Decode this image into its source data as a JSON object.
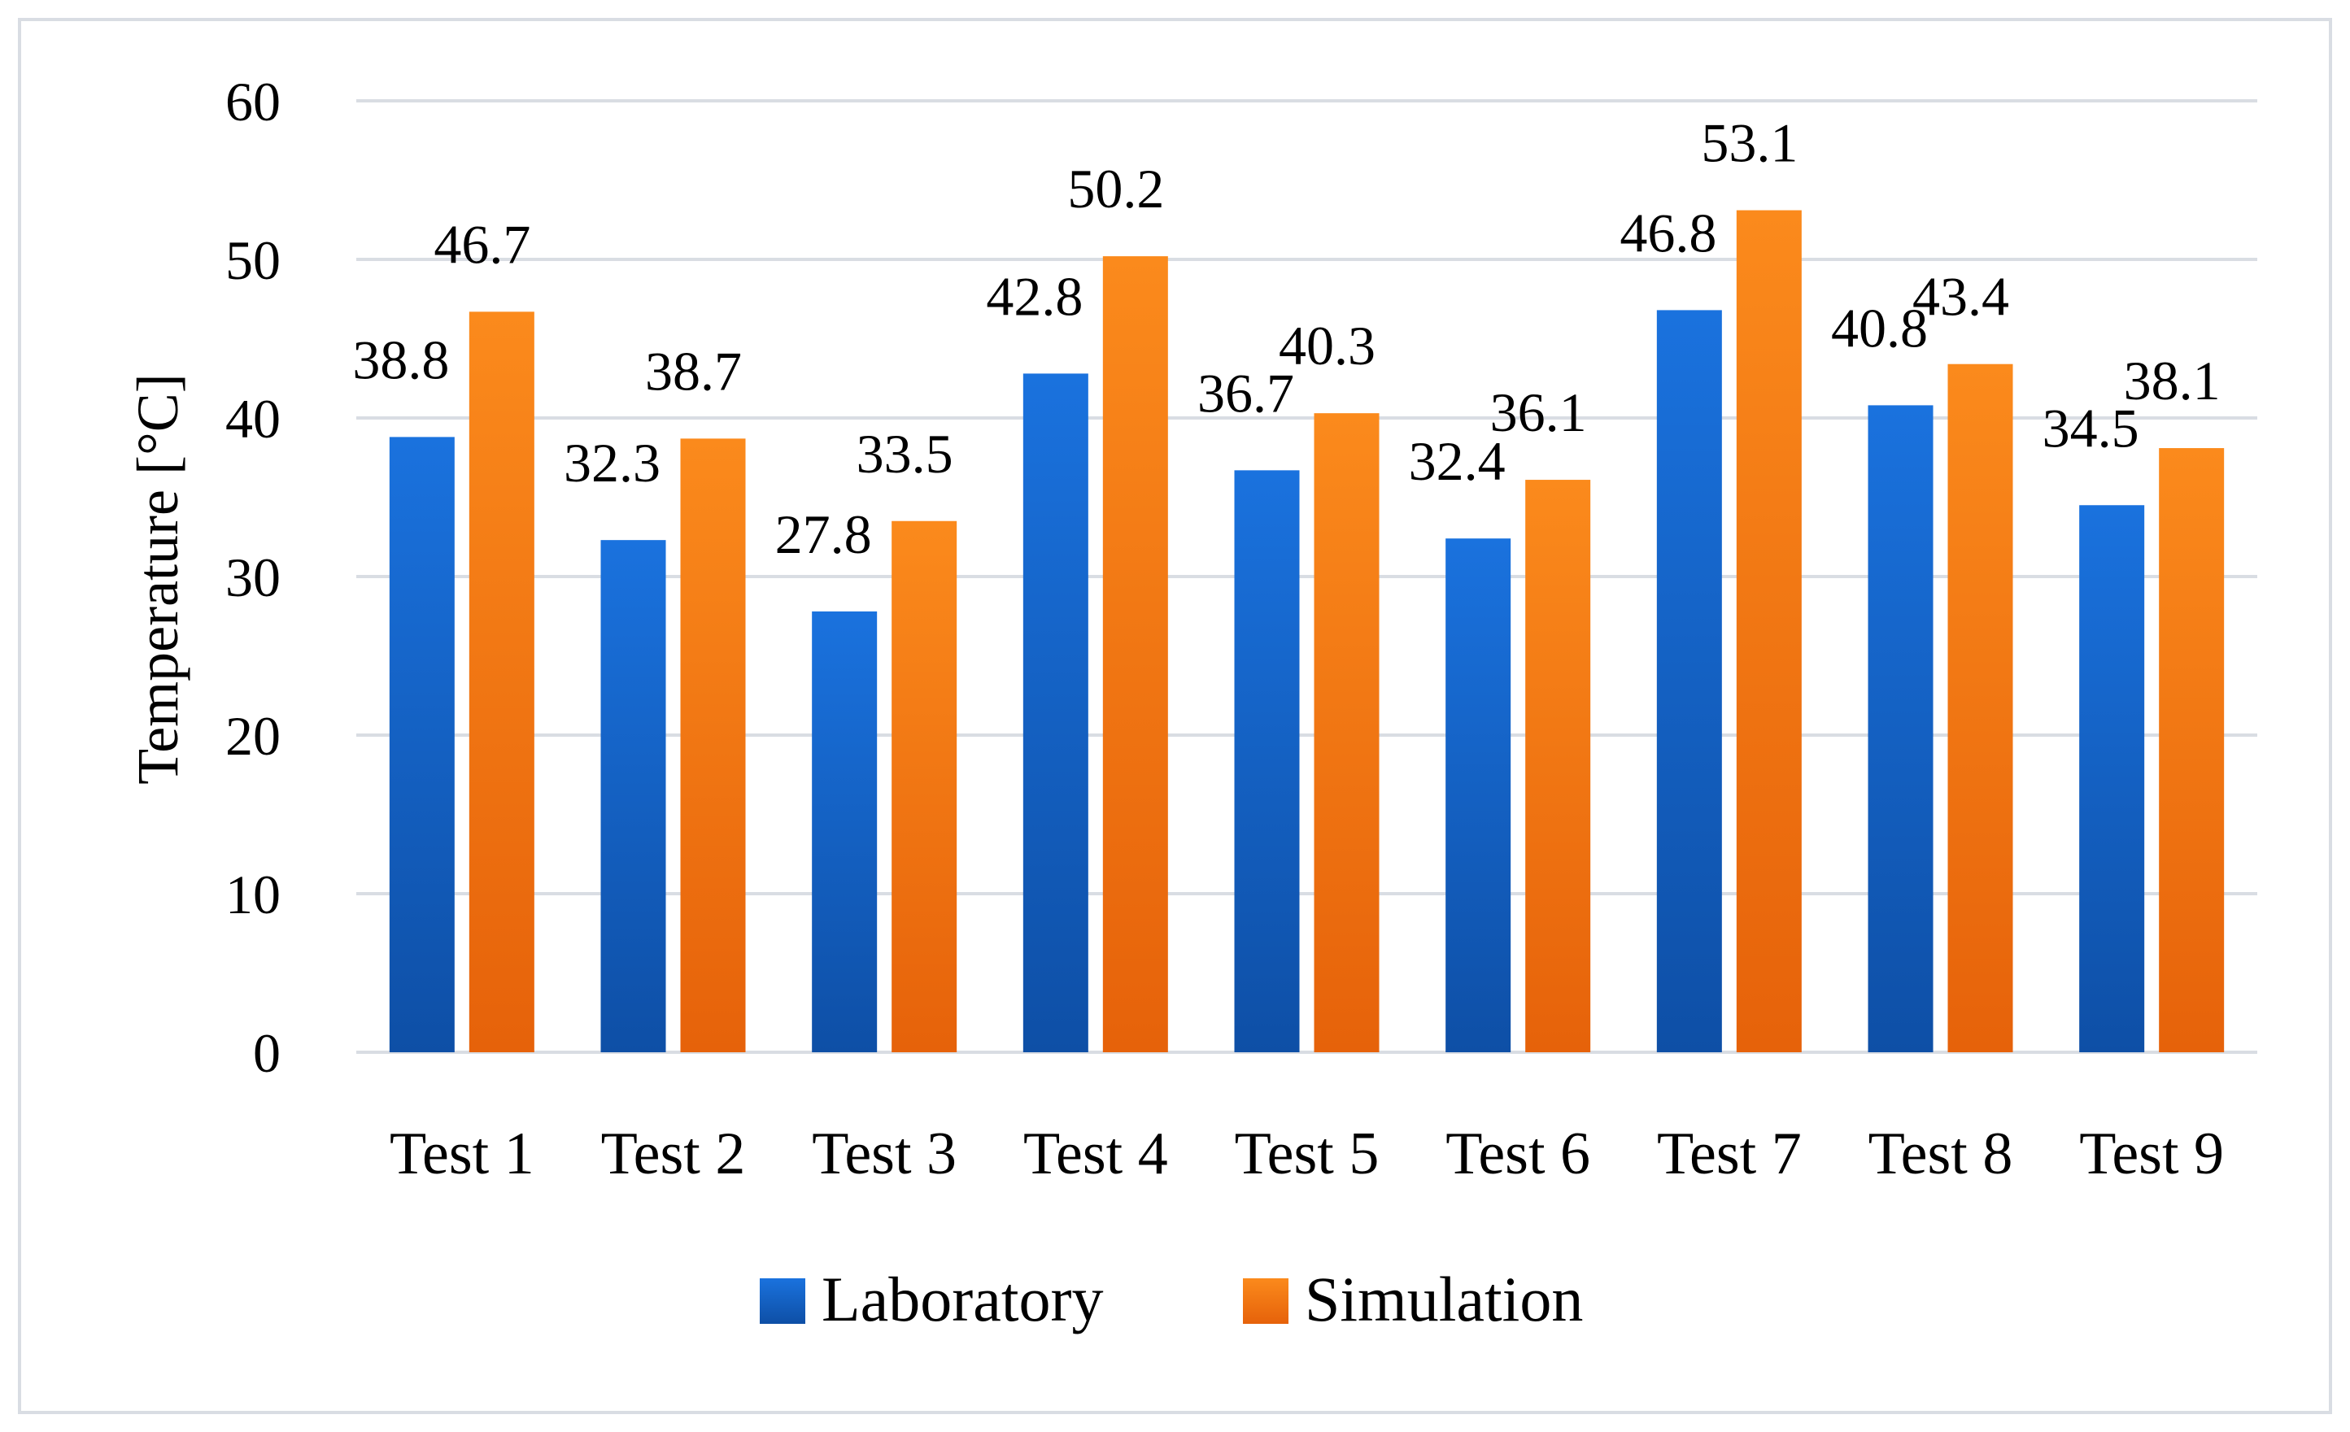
{
  "chart_data": {
    "type": "bar",
    "title": "",
    "xlabel": "",
    "ylabel": "Temperature [°C]",
    "ylim": [
      0,
      60
    ],
    "yticks": [
      0,
      10,
      20,
      30,
      40,
      50,
      60
    ],
    "grid": true,
    "legend_position": "bottom",
    "categories": [
      "Test 1",
      "Test 2",
      "Test 3",
      "Test 4",
      "Test 5",
      "Test 6",
      "Test 7",
      "Test 8",
      "Test 9"
    ],
    "series": [
      {
        "name": "Laboratory",
        "values": [
          38.8,
          32.3,
          27.8,
          42.8,
          36.7,
          32.4,
          46.8,
          40.8,
          34.5
        ],
        "labels": [
          "38.8",
          "32.3",
          "27.8",
          "42.8",
          "36.7",
          "32.4",
          "46.8",
          "40.8",
          "34.5"
        ]
      },
      {
        "name": "Simulation",
        "values": [
          46.7,
          38.7,
          33.5,
          50.2,
          40.3,
          36.1,
          53.1,
          43.4,
          38.1
        ],
        "labels": [
          "46.7",
          "38.7",
          "33.5",
          "50.2",
          "40.3",
          "36.1",
          "53.1",
          "43.4",
          "38.1"
        ]
      }
    ]
  },
  "colors": {
    "laboratory_top": "#1a72de",
    "laboratory_bottom": "#0e4fa6",
    "simulation_top": "#fb8a1c",
    "simulation_bottom": "#e6620a",
    "grid": "#d9dde3",
    "frame": "#d9dde3"
  }
}
